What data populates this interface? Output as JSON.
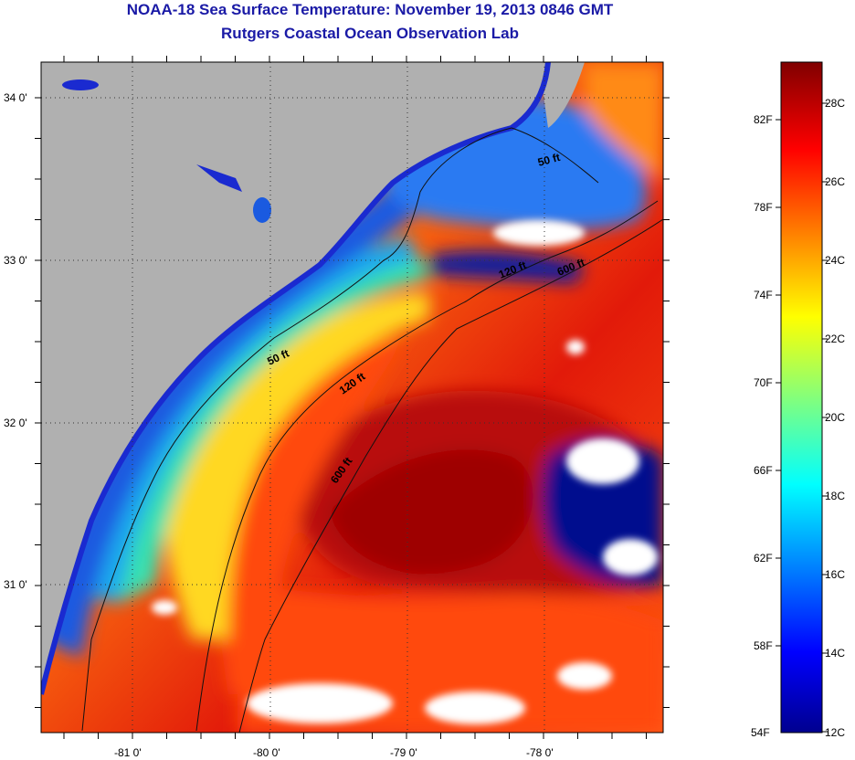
{
  "title": {
    "line1": "NOAA-18 Sea Surface Temperature:  November 19, 2013 0846 GMT",
    "line2": "Rutgers Coastal Ocean Observation Lab"
  },
  "map": {
    "lat_labels": [
      "34 0'",
      "33 0'",
      "32 0'",
      "31 0'"
    ],
    "lon_labels": [
      "-81 0'",
      "-80 0'",
      "-79 0'",
      "-78 0'"
    ],
    "contours": [
      {
        "label": "50 ft"
      },
      {
        "label": "120 ft"
      },
      {
        "label": "600 ft"
      },
      {
        "label": "50 ft"
      },
      {
        "label": "120 ft"
      },
      {
        "label": "600 ft"
      }
    ]
  },
  "colorbar": {
    "fahrenheit_labels": [
      "82F",
      "78F",
      "74F",
      "70F",
      "66F",
      "62F",
      "58F",
      "54F"
    ],
    "celsius_labels": [
      "28C",
      "26C",
      "24C",
      "22C",
      "20C",
      "18C",
      "16C",
      "14C",
      "12C"
    ]
  },
  "colors": {
    "title": "#1a1aa6",
    "land": "#b0b0b0",
    "cloud": "#ffffff"
  }
}
